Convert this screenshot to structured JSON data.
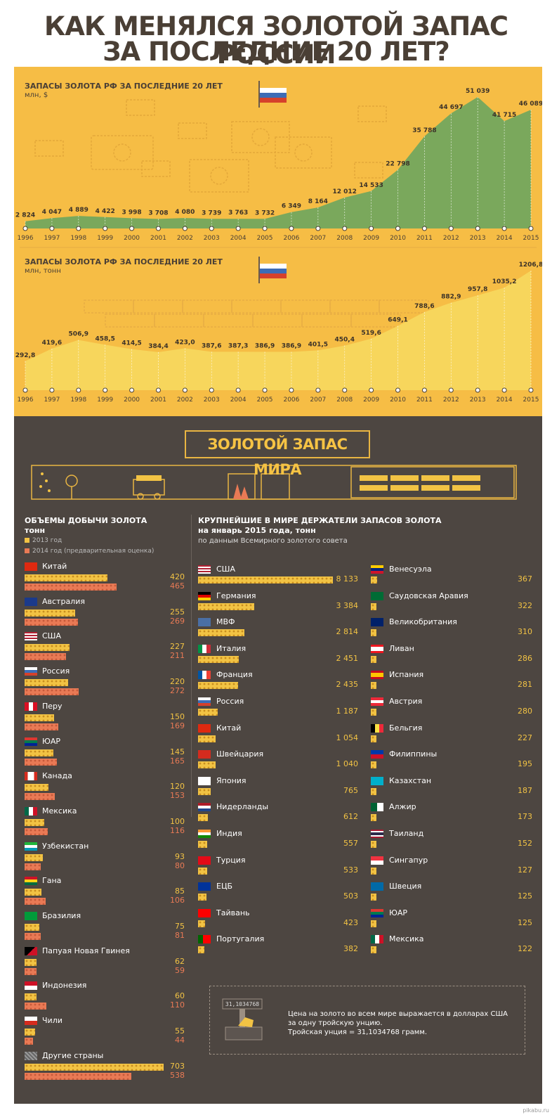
{
  "title_line1": "КАК МЕНЯЛСЯ ЗОЛОТОЙ ЗАПАС РОССИИ",
  "title_line2": "ЗА ПОСЛЕДНИЕ 20 ЛЕТ?",
  "chart_data": [
    {
      "type": "area",
      "title": "ЗАПАСЫ ЗОЛОТА РФ ЗА ПОСЛЕДНИЕ 20 ЛЕТ",
      "unit": "млн, $",
      "x": [
        "1996",
        "1997",
        "1998",
        "1999",
        "2000",
        "2001",
        "2002",
        "2003",
        "2004",
        "2005",
        "2006",
        "2007",
        "2008",
        "2009",
        "2010",
        "2011",
        "2012",
        "2013",
        "2014",
        "2015"
      ],
      "values": [
        2824,
        4047,
        4889,
        4422,
        3998,
        3708,
        4080,
        3739,
        3763,
        3732,
        6349,
        8164,
        12012,
        14533,
        22798,
        35788,
        44697,
        51039,
        41715,
        46089
      ],
      "labels": [
        "2 824",
        "4 047",
        "4 889",
        "4 422",
        "3 998",
        "3 708",
        "4 080",
        "3 739",
        "3 763",
        "3 732",
        "6 349",
        "8 164",
        "12 012",
        "14 533",
        "22 798",
        "35 788",
        "44 697",
        "51 039",
        "41 715",
        "46 089"
      ],
      "ylim": [
        0,
        51039
      ],
      "color": "#7aa85c"
    },
    {
      "type": "area",
      "title": "ЗАПАСЫ ЗОЛОТА РФ ЗА ПОСЛЕДНИЕ 20 ЛЕТ",
      "unit": "млн, тонн",
      "x": [
        "1996",
        "1997",
        "1998",
        "1999",
        "2000",
        "2001",
        "2002",
        "2003",
        "2004",
        "2005",
        "2006",
        "2007",
        "2008",
        "2009",
        "2010",
        "2011",
        "2012",
        "2013",
        "2014",
        "2015"
      ],
      "values": [
        292.8,
        419.6,
        506.9,
        458.5,
        414.5,
        384.4,
        423.0,
        387.6,
        387.3,
        386.9,
        386.9,
        401.5,
        450.4,
        519.6,
        649.1,
        788.6,
        882.9,
        957.8,
        1035.2,
        1206.8
      ],
      "labels": [
        "292,8",
        "419,6",
        "506,9",
        "458,5",
        "414,5",
        "384,4",
        "423,0",
        "387,6",
        "387,3",
        "386,9",
        "386,9",
        "401,5",
        "450,4",
        "519,6",
        "649,1",
        "788,6",
        "882,9",
        "957,8",
        "1035,2",
        "1206,8"
      ],
      "ylim": [
        0,
        1206.8
      ],
      "color": "#f7d65c"
    },
    {
      "type": "bar",
      "title": "ОБЪЕМЫ ДОБЫЧИ ЗОЛОТА",
      "unit": "тонн",
      "legend": [
        "2013 год",
        "2014 год (предварительная оценка)"
      ],
      "colors": [
        "#f2c344",
        "#e97a55"
      ],
      "rows": [
        {
          "name": "Китай",
          "flag": "cn",
          "v2013": 420,
          "v2014": 465
        },
        {
          "name": "Австралия",
          "flag": "au",
          "v2013": 255,
          "v2014": 269
        },
        {
          "name": "США",
          "flag": "us",
          "v2013": 227,
          "v2014": 211
        },
        {
          "name": "Россия",
          "flag": "ru",
          "v2013": 220,
          "v2014": 272
        },
        {
          "name": "Перу",
          "flag": "pe",
          "v2013": 150,
          "v2014": 169
        },
        {
          "name": "ЮАР",
          "flag": "za",
          "v2013": 145,
          "v2014": 165
        },
        {
          "name": "Канада",
          "flag": "ca",
          "v2013": 120,
          "v2014": 153
        },
        {
          "name": "Мексика",
          "flag": "mx",
          "v2013": 100,
          "v2014": 116
        },
        {
          "name": "Узбекистан",
          "flag": "uz",
          "v2013": 93,
          "v2014": 80
        },
        {
          "name": "Гана",
          "flag": "gh",
          "v2013": 85,
          "v2014": 106
        },
        {
          "name": "Бразилия",
          "flag": "br",
          "v2013": 75,
          "v2014": 81
        },
        {
          "name": "Папуая Новая Гвинея",
          "flag": "pg",
          "v2013": 62,
          "v2014": 59
        },
        {
          "name": "Индонезия",
          "flag": "id",
          "v2013": 60,
          "v2014": 110
        },
        {
          "name": "Чили",
          "flag": "cl",
          "v2013": 55,
          "v2014": 44
        },
        {
          "name": "Другие страны",
          "flag": "other",
          "v2013": 703,
          "v2014": 538
        }
      ],
      "max": 703
    },
    {
      "type": "bar",
      "title": "КРУПНЕЙШИЕ В МИРЕ ДЕРЖАТЕЛИ ЗАПАСОВ ЗОЛОТА",
      "subtitle": "на январь 2015 года, тонн",
      "source": "по данным Всемирного золотого совета",
      "color": "#f2c344",
      "columns": [
        [
          {
            "name": "США",
            "flag": "us",
            "value": 8133,
            "label": "8 133"
          },
          {
            "name": "Германия",
            "flag": "de",
            "value": 3384,
            "label": "3 384"
          },
          {
            "name": "МВФ",
            "flag": "imf",
            "value": 2814,
            "label": "2 814"
          },
          {
            "name": "Италия",
            "flag": "it",
            "value": 2451,
            "label": "2 451"
          },
          {
            "name": "Франция",
            "flag": "fr",
            "value": 2435,
            "label": "2 435"
          },
          {
            "name": "Россия",
            "flag": "ru",
            "value": 1187,
            "label": "1 187"
          },
          {
            "name": "Китай",
            "flag": "cn",
            "value": 1054,
            "label": "1 054"
          },
          {
            "name": "Швейцария",
            "flag": "ch",
            "value": 1040,
            "label": "1 040"
          },
          {
            "name": "Япония",
            "flag": "jp",
            "value": 765,
            "label": "765"
          },
          {
            "name": "Нидерланды",
            "flag": "nl",
            "value": 612,
            "label": "612"
          },
          {
            "name": "Индия",
            "flag": "in",
            "value": 557,
            "label": "557"
          },
          {
            "name": "Турция",
            "flag": "tr",
            "value": 533,
            "label": "533"
          },
          {
            "name": "ЕЦБ",
            "flag": "eu",
            "value": 503,
            "label": "503"
          },
          {
            "name": "Тайвань",
            "flag": "tw",
            "value": 423,
            "label": "423"
          },
          {
            "name": "Португалия",
            "flag": "pt",
            "value": 382,
            "label": "382"
          }
        ],
        [
          {
            "name": "Венесуэла",
            "flag": "ve",
            "value": 367,
            "label": "367"
          },
          {
            "name": "Саудовская Аравия",
            "flag": "sa",
            "value": 322,
            "label": "322"
          },
          {
            "name": "Великобритания",
            "flag": "gb",
            "value": 310,
            "label": "310"
          },
          {
            "name": "Ливан",
            "flag": "lb",
            "value": 286,
            "label": "286"
          },
          {
            "name": "Испания",
            "flag": "es",
            "value": 281,
            "label": "281"
          },
          {
            "name": "Австрия",
            "flag": "at",
            "value": 280,
            "label": "280"
          },
          {
            "name": "Бельгия",
            "flag": "be",
            "value": 227,
            "label": "227"
          },
          {
            "name": "Филиппины",
            "flag": "ph",
            "value": 195,
            "label": "195"
          },
          {
            "name": "Казахстан",
            "flag": "kz",
            "value": 187,
            "label": "187"
          },
          {
            "name": "Алжир",
            "flag": "dz",
            "value": 173,
            "label": "173"
          },
          {
            "name": "Таиланд",
            "flag": "th",
            "value": 152,
            "label": "152"
          },
          {
            "name": "Сингапур",
            "flag": "sg",
            "value": 127,
            "label": "127"
          },
          {
            "name": "Швеция",
            "flag": "se",
            "value": 125,
            "label": "125"
          },
          {
            "name": "ЮАР",
            "flag": "za",
            "value": 125,
            "label": "125"
          },
          {
            "name": "Мексика",
            "flag": "mx",
            "value": 122,
            "label": "122"
          }
        ]
      ],
      "max": 8133
    }
  ],
  "world_badge": "ЗОЛОТОЙ ЗАПАС МИРА",
  "scale_display": "31,1034768",
  "note_lines": [
    "Цена на золото во всем мире выражается в долларах США",
    "за одну тройскую унцию.",
    "Тройская унция = 31,1034768 грамм."
  ],
  "footer": "pikabu.ru"
}
